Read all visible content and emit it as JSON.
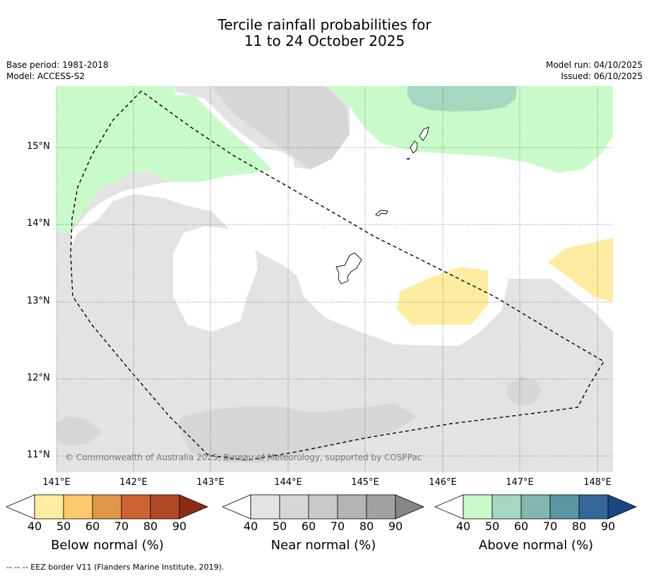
{
  "header": {
    "title_line1": "Tercile rainfall probabilities for",
    "title_line2": "11 to 24 October 2025",
    "base_period": "Base period: 1981-2018",
    "model": "Model: ACCESS-S2",
    "model_run": "Model run: 04/10/2025",
    "issued": "Issued: 06/10/2025"
  },
  "map": {
    "lat_labels": [
      "15°N",
      "14°N",
      "13°N",
      "12°N",
      "11°N"
    ],
    "lon_labels": [
      "141°E",
      "142°E",
      "143°E",
      "144°E",
      "145°E",
      "146°E",
      "147°E",
      "148°E"
    ],
    "copyright": "© Commonwealth of Australia 2025, Bureau of Meteorology, supported by COSPPac",
    "border_style": "dashed",
    "colors": {
      "ocean_white": "#ffffff",
      "near_normal_40": "#e3e3e3",
      "near_normal_50": "#d6d6d6",
      "below_normal_40": "#feeda0",
      "above_normal_40": "#c9fbca",
      "above_normal_50": "#a6d7c0"
    }
  },
  "colorbars": [
    {
      "title": "Below normal (%)",
      "ticks": [
        "40",
        "50",
        "60",
        "70",
        "80",
        "90"
      ],
      "colors": [
        "#feeda0",
        "#fdca6b",
        "#e19548",
        "#cd6333",
        "#b14926",
        "#8b2b16"
      ]
    },
    {
      "title": "Near normal (%)",
      "ticks": [
        "40",
        "50",
        "60",
        "70",
        "80",
        "90"
      ],
      "colors": [
        "#e3e3e3",
        "#d6d6d6",
        "#c9c9c9",
        "#b4b4b4",
        "#a1a1a1",
        "#868686"
      ]
    },
    {
      "title": "Above normal (%)",
      "ticks": [
        "40",
        "50",
        "60",
        "70",
        "80",
        "90"
      ],
      "colors": [
        "#c9fbca",
        "#a6d7c0",
        "#83b7b2",
        "#5b97a3",
        "#346898",
        "#174881"
      ]
    }
  ],
  "footnote": "--  --  -- EEZ border V11 (Flanders Marine Institute, 2019)."
}
